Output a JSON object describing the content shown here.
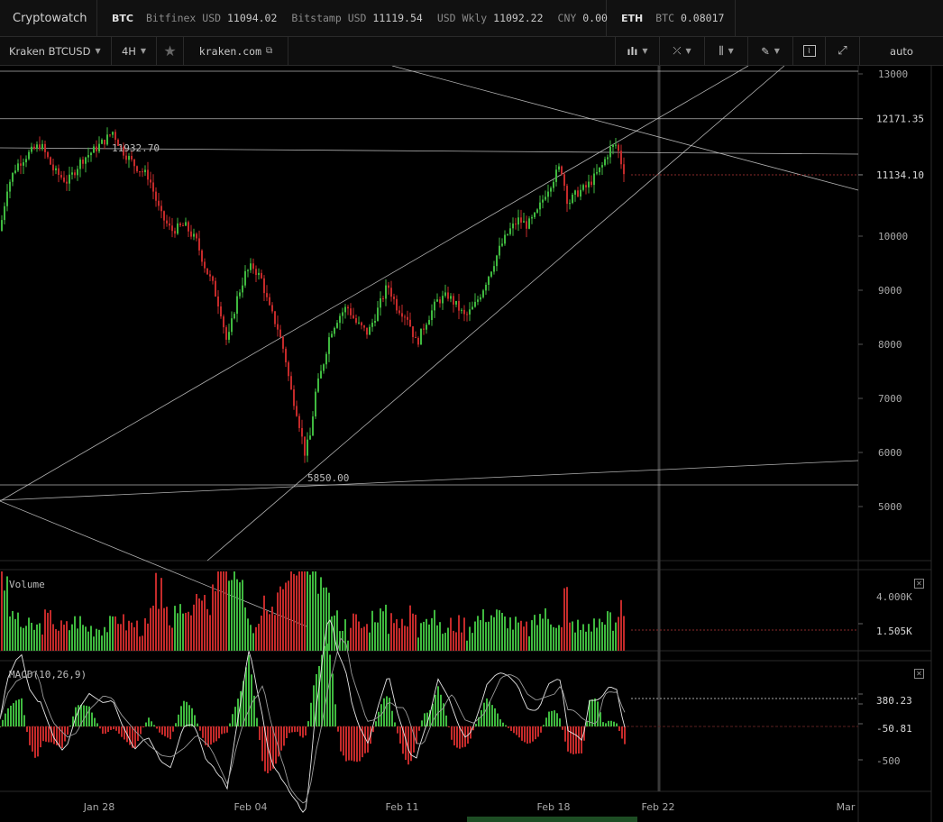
{
  "app": {
    "title": "Cryptowatch"
  },
  "ticker_btc": {
    "coin": "BTC",
    "items": [
      {
        "label": "Bitfinex USD",
        "value": "11094.02"
      },
      {
        "label": "Bitstamp USD",
        "value": "11119.54"
      },
      {
        "label": "USD Wkly",
        "value": "11092.22"
      },
      {
        "label": "CNY",
        "value": "0.00"
      }
    ]
  },
  "ticker_eth": {
    "coin": "ETH",
    "items": [
      {
        "label": "BTC",
        "value": "0.08017"
      }
    ]
  },
  "toolbar": {
    "market": "Kraken BTCUSD",
    "period": "4H",
    "star_icon": "star-icon",
    "site": "kraken.com",
    "link_icon": "external-link-icon",
    "tools": [
      "candles-icon",
      "crosshair-icon",
      "bars-icon",
      "pencil-icon"
    ],
    "chart_icon": "chart-settings-icon",
    "expand_icon": "fullscreen-icon",
    "scale": "auto"
  },
  "colors": {
    "up": "#3fb93f",
    "down": "#c42a2a",
    "line": "#cfcfcf",
    "grid": "#222222"
  },
  "chart_data": {
    "type": "candlestick",
    "price_axis": {
      "ticks": [
        13000,
        10000,
        9000,
        8000,
        7000,
        6000,
        5000
      ],
      "ylim": [
        4400,
        13450
      ]
    },
    "price_labels": {
      "high_marker": "12171.35",
      "last_price": "11134.10"
    },
    "annotations": {
      "high": "11932.70",
      "low": "5850.00"
    },
    "date_axis": {
      "labels": [
        "Jan 28",
        "Feb 04",
        "Feb 11",
        "Feb 18",
        "Feb 22",
        "Mar"
      ]
    },
    "volume": {
      "title": "Volume",
      "ticks": [
        "4.000K"
      ],
      "last": "1.505K"
    },
    "macd": {
      "title": "MACD(10,26,9)",
      "ticks": [
        "-500"
      ],
      "macd_last": "380.23",
      "hist_last": "-50.81"
    },
    "price_path": [
      [
        0,
        10100
      ],
      [
        8,
        10900
      ],
      [
        18,
        11300
      ],
      [
        30,
        11500
      ],
      [
        45,
        11700
      ],
      [
        60,
        11200
      ],
      [
        75,
        11000
      ],
      [
        90,
        11400
      ],
      [
        105,
        11600
      ],
      [
        118,
        11800
      ],
      [
        125,
        11930
      ],
      [
        135,
        11600
      ],
      [
        150,
        11300
      ],
      [
        165,
        11100
      ],
      [
        178,
        10400
      ],
      [
        190,
        10100
      ],
      [
        205,
        10200
      ],
      [
        218,
        9900
      ],
      [
        228,
        9400
      ],
      [
        236,
        9100
      ],
      [
        245,
        8600
      ],
      [
        252,
        8000
      ],
      [
        262,
        8800
      ],
      [
        272,
        9300
      ],
      [
        280,
        9450
      ],
      [
        290,
        9200
      ],
      [
        298,
        8700
      ],
      [
        308,
        8300
      ],
      [
        316,
        7800
      ],
      [
        322,
        7200
      ],
      [
        330,
        6700
      ],
      [
        338,
        6000
      ],
      [
        344,
        6300
      ],
      [
        350,
        7100
      ],
      [
        358,
        7600
      ],
      [
        366,
        8200
      ],
      [
        375,
        8500
      ],
      [
        385,
        8700
      ],
      [
        395,
        8400
      ],
      [
        408,
        8200
      ],
      [
        418,
        8600
      ],
      [
        430,
        9100
      ],
      [
        440,
        8700
      ],
      [
        452,
        8500
      ],
      [
        462,
        8000
      ],
      [
        472,
        8400
      ],
      [
        485,
        8800
      ],
      [
        497,
        8900
      ],
      [
        507,
        8700
      ],
      [
        516,
        8500
      ],
      [
        526,
        8700
      ],
      [
        535,
        9000
      ],
      [
        545,
        9400
      ],
      [
        555,
        9800
      ],
      [
        565,
        10100
      ],
      [
        575,
        10300
      ],
      [
        585,
        10200
      ],
      [
        595,
        10400
      ],
      [
        605,
        10800
      ],
      [
        615,
        11100
      ],
      [
        622,
        11300
      ],
      [
        630,
        10600
      ],
      [
        640,
        10800
      ],
      [
        650,
        10900
      ],
      [
        660,
        11100
      ],
      [
        668,
        11300
      ],
      [
        676,
        11600
      ],
      [
        684,
        11700
      ],
      [
        690,
        11300
      ],
      [
        695,
        11100
      ]
    ]
  }
}
